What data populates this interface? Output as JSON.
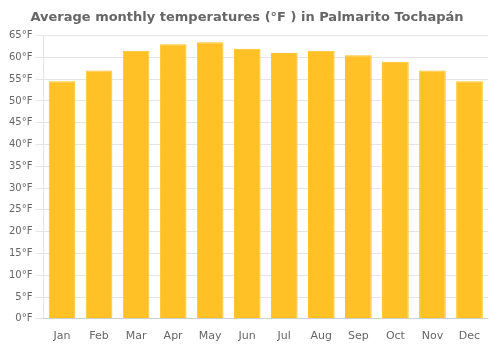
{
  "chart_data": {
    "type": "bar",
    "title": "Average monthly temperatures (°F ) in Palmarito Tochapán",
    "categories": [
      "Jan",
      "Feb",
      "Mar",
      "Apr",
      "May",
      "Jun",
      "Jul",
      "Aug",
      "Sep",
      "Oct",
      "Nov",
      "Dec"
    ],
    "values": [
      54.5,
      57.0,
      61.5,
      63.0,
      63.5,
      62.0,
      61.0,
      61.5,
      60.5,
      59.0,
      57.0,
      54.5
    ],
    "color": "#FFC125",
    "ylim": [
      0,
      65
    ],
    "yticks": [
      {
        "value": 0,
        "label": "0°F"
      },
      {
        "value": 5,
        "label": "5°F"
      },
      {
        "value": 10,
        "label": "10°F"
      },
      {
        "value": 15,
        "label": "15°F"
      },
      {
        "value": 20,
        "label": "20°F"
      },
      {
        "value": 25,
        "label": "25°F"
      },
      {
        "value": 30,
        "label": "30°F"
      },
      {
        "value": 35,
        "label": "35°F"
      },
      {
        "value": 40,
        "label": "40°F"
      },
      {
        "value": 45,
        "label": "45°F"
      },
      {
        "value": 50,
        "label": "50°F"
      },
      {
        "value": 55,
        "label": "55°F"
      },
      {
        "value": 60,
        "label": "60°F"
      },
      {
        "value": 65,
        "label": "65°F"
      }
    ],
    "grid": true
  }
}
